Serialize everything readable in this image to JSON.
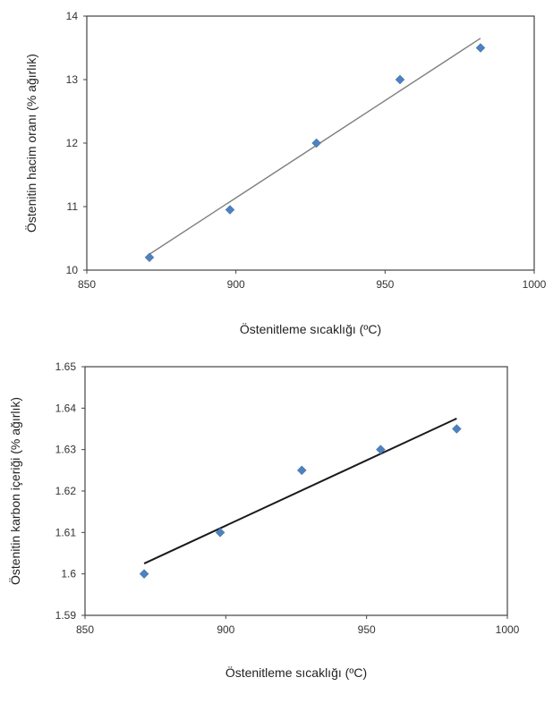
{
  "chart_data": [
    {
      "type": "scatter",
      "title": "",
      "xlabel": "Östenitleme sıcaklığı (ºC)",
      "ylabel": "Östenitin hacim oranı (% ağırlık)",
      "xlim": [
        850,
        1000
      ],
      "ylim": [
        10,
        14
      ],
      "xticks": [
        "850",
        "900",
        "950",
        "1000"
      ],
      "yticks": [
        "10",
        "11",
        "12",
        "13",
        "14"
      ],
      "grid": false,
      "legend": "none",
      "marker_color": "#4f81bd",
      "trendline_color": "#808080",
      "series": [
        {
          "x": [
            871,
            898,
            927,
            955,
            982
          ],
          "y": [
            10.2,
            10.95,
            12.0,
            13.0,
            13.5
          ]
        }
      ],
      "trendline": {
        "x": [
          871,
          982
        ],
        "y": [
          10.25,
          13.65
        ]
      }
    },
    {
      "type": "scatter",
      "title": "",
      "xlabel": "Östenitleme sıcaklığı (ºC)",
      "ylabel": "Östenitin karbon içeriği (% ağırlık)",
      "xlim": [
        850,
        1000
      ],
      "ylim": [
        1.59,
        1.65
      ],
      "xticks": [
        "850",
        "900",
        "950",
        "1000"
      ],
      "yticks": [
        "1.59",
        "1.6",
        "1.61",
        "1.62",
        "1.63",
        "1.64",
        "1.65"
      ],
      "grid": false,
      "legend": "none",
      "marker_color": "#4f81bd",
      "trendline_color": "#1a1a1a",
      "series": [
        {
          "x": [
            871,
            898,
            927,
            955,
            982
          ],
          "y": [
            1.6,
            1.61,
            1.625,
            1.63,
            1.635
          ]
        }
      ],
      "trendline": {
        "x": [
          871,
          982
        ],
        "y": [
          1.6025,
          1.6375
        ]
      }
    }
  ]
}
